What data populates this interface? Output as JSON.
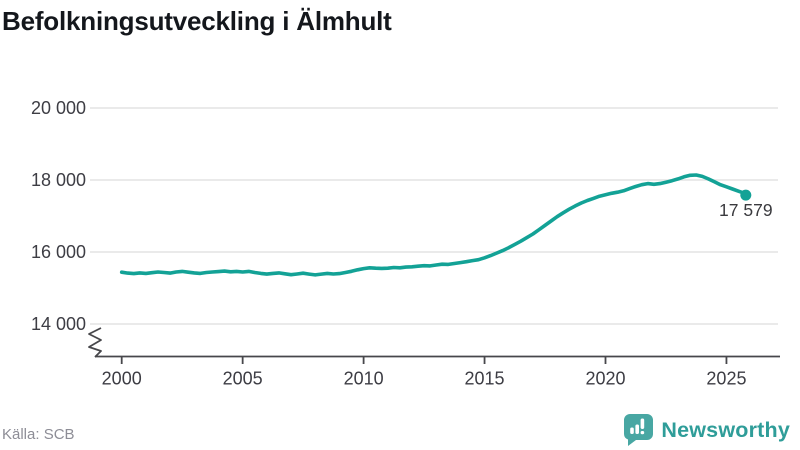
{
  "header": {
    "title": "Befolkningsutveckling i Älmhult"
  },
  "footer": {
    "source": "Källa: SCB",
    "brand": {
      "name": "Newsworthy",
      "icon": "bar-chart-speech-bubble",
      "color": "#2f9d99",
      "icon_color": "#48a7a3"
    }
  },
  "colors": {
    "line": "#13a296",
    "grid": "#e3e3e3",
    "axis": "#47474b",
    "tick_label": "#3d3d44",
    "point_label": "#3a3a3e"
  },
  "chart_data": {
    "type": "line",
    "title": "Befolkningsutveckling i Älmhult",
    "xlabel": "",
    "ylabel": "",
    "x_start": 2000,
    "x_step": 0.25,
    "values": [
      15440,
      15415,
      15400,
      15420,
      15405,
      15425,
      15445,
      15430,
      15415,
      15445,
      15460,
      15440,
      15420,
      15405,
      15430,
      15445,
      15455,
      15470,
      15450,
      15460,
      15445,
      15460,
      15430,
      15405,
      15385,
      15405,
      15420,
      15395,
      15370,
      15390,
      15410,
      15385,
      15365,
      15385,
      15405,
      15390,
      15400,
      15430,
      15465,
      15505,
      15540,
      15560,
      15550,
      15545,
      15550,
      15570,
      15560,
      15580,
      15590,
      15605,
      15620,
      15615,
      15640,
      15660,
      15655,
      15680,
      15705,
      15730,
      15760,
      15785,
      15840,
      15900,
      15970,
      16040,
      16120,
      16210,
      16300,
      16400,
      16500,
      16620,
      16740,
      16860,
      16980,
      17090,
      17190,
      17280,
      17360,
      17430,
      17490,
      17550,
      17590,
      17630,
      17660,
      17700,
      17760,
      17820,
      17870,
      17900,
      17880,
      17900,
      17940,
      17980,
      18030,
      18090,
      18130,
      18140,
      18100,
      18030,
      17950,
      17870,
      17810,
      17750,
      17690,
      17630
    ],
    "latest_point": {
      "x": 2025.8,
      "value": 17579,
      "label": "17 579"
    },
    "y_ticks": [
      {
        "value": 20000,
        "label": "20 000"
      },
      {
        "value": 18000,
        "label": "18 000"
      },
      {
        "value": 16000,
        "label": "16 000"
      },
      {
        "value": 14000,
        "label": "14 000"
      }
    ],
    "x_ticks": [
      {
        "value": 2000,
        "label": "2000"
      },
      {
        "value": 2005,
        "label": "2005"
      },
      {
        "value": 2010,
        "label": "2010"
      },
      {
        "value": 2015,
        "label": "2015"
      },
      {
        "value": 2020,
        "label": "2020"
      },
      {
        "value": 2025,
        "label": "2025"
      }
    ],
    "ylim": [
      13600,
      20400
    ],
    "xlim": [
      1999,
      2027.2
    ],
    "grid": "horizontal",
    "axis_break": true,
    "legend": "none"
  }
}
